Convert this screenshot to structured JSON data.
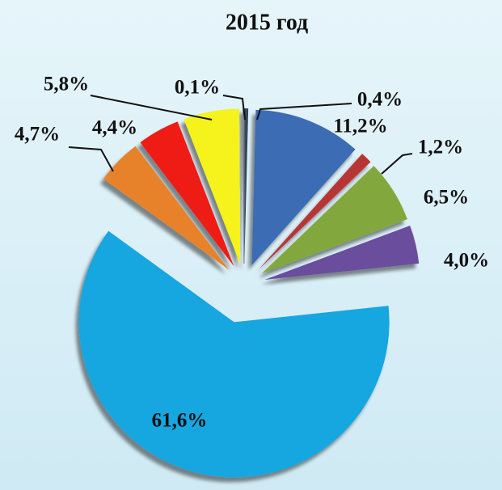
{
  "chart_data": {
    "type": "pie",
    "title": "2015 год",
    "values": [
      0.4,
      11.2,
      1.2,
      6.5,
      4.0,
      61.6,
      4.7,
      4.4,
      5.8,
      0.1
    ],
    "value_labels": [
      "0,4%",
      "11,2%",
      "1,2%",
      "6,5%",
      "4,0%",
      "61,6%",
      "4,7%",
      "4,4%",
      "5,8%",
      "0,1%"
    ],
    "colors": [
      "#33475f",
      "#3a6cb4",
      "#b83434",
      "#82a83c",
      "#6b4d9c",
      "#18a6e0",
      "#e8822c",
      "#ef1a14",
      "#f6f21c",
      "#f4f4f4"
    ]
  }
}
